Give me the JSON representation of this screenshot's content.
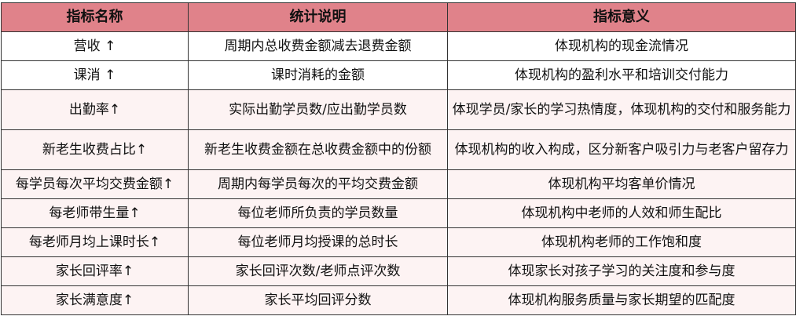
{
  "colors": {
    "header": "#e0828a",
    "row_light": "#fdf3f3",
    "border": "#333333"
  },
  "headers": [
    "指标名称",
    "统计说明",
    "指标意义"
  ],
  "rows": [
    {
      "name": "营收 ↑",
      "desc": "周期内总收费金额减去退费金额",
      "meaning": "体现机构的现金流情况"
    },
    {
      "name": "课消 ↑",
      "desc": "课时消耗的金额",
      "meaning": "体现机构的盈利水平和培训交付能力"
    },
    {
      "name": "出勤率↑",
      "desc": "实际出勤学员数/应出勤学员数",
      "meaning": "体现学员/家长的学习热情度，体现机构的交付和服务能力"
    },
    {
      "name": "新老生收费占比↑",
      "desc": "新老生收费金额在总收费金额中的份额",
      "meaning": "体现机构的收入构成，区分新客户吸引力与老客户留存力"
    },
    {
      "name": "每学员每次平均交费金额↑",
      "desc": "周期内每学员每次的平均交费金额",
      "meaning": "体现机构平均客单价情况"
    },
    {
      "name": "每老师带生量↑",
      "desc": "每位老师所负责的学员数量",
      "meaning": "体现机构中老师的人效和师生配比"
    },
    {
      "name": "每老师月均上课时长↑",
      "desc": "每位老师月均授课的总时长",
      "meaning": "体现机构老师的工作饱和度"
    },
    {
      "name": "家长回评率↑",
      "desc": "家长回评次数/老师点评次数",
      "meaning": "体现家长对孩子学习的关注度和参与度"
    },
    {
      "name": "家长满意度↑",
      "desc": "家长平均回评分数",
      "meaning": "体现机构服务质量与家长期望的匹配度"
    }
  ]
}
